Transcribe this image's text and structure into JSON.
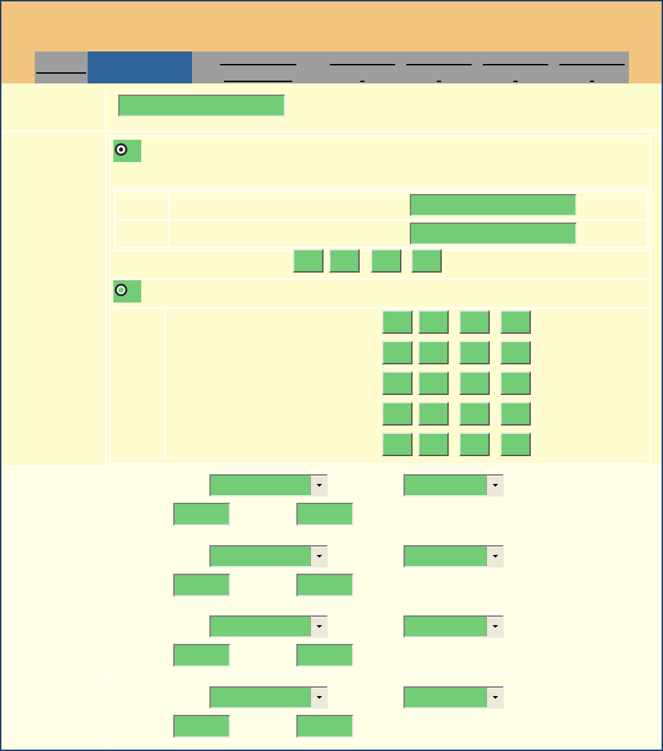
{
  "header": {
    "title": ""
  },
  "tabs": [
    {
      "id": "tab-1",
      "label": "",
      "active": false
    },
    {
      "id": "tab-2",
      "label": "",
      "active": true
    },
    {
      "id": "tab-3",
      "label": "",
      "active": false
    },
    {
      "id": "tab-4",
      "label": "",
      "active": false
    },
    {
      "id": "tab-5",
      "label": "",
      "active": false
    },
    {
      "id": "tab-6",
      "label": "",
      "active": false
    },
    {
      "id": "tab-7",
      "label": "",
      "active": false
    }
  ],
  "name_section": {
    "label": "",
    "name_value": ""
  },
  "mode_section": {
    "label": "",
    "option_a": {
      "label": "",
      "selected": true
    },
    "option_a_rows": [
      {
        "label": "",
        "desc": "",
        "value": ""
      },
      {
        "label": "",
        "desc": "",
        "value": ""
      }
    ],
    "option_a_buttons": [
      "",
      "",
      "",
      ""
    ],
    "option_b": {
      "label": "",
      "selected": false
    },
    "option_b_rows": [
      {
        "label": "",
        "desc": "",
        "values": [
          "",
          "",
          "",
          ""
        ]
      },
      {
        "label": "",
        "desc": "",
        "values": [
          "",
          "",
          "",
          ""
        ]
      },
      {
        "label": "",
        "desc": "",
        "values": [
          "",
          "",
          "",
          ""
        ]
      },
      {
        "label": "",
        "desc": "",
        "values": [
          "",
          "",
          "",
          ""
        ]
      },
      {
        "label": "",
        "desc": "",
        "values": [
          "",
          "",
          "",
          ""
        ]
      }
    ]
  },
  "select_groups": [
    {
      "select_a": "",
      "select_b": "",
      "field_a": "",
      "field_b": ""
    },
    {
      "select_a": "",
      "select_b": "",
      "field_a": "",
      "field_b": ""
    },
    {
      "select_a": "",
      "select_b": "",
      "field_a": "",
      "field_b": ""
    },
    {
      "select_a": "",
      "select_b": "",
      "field_a": "",
      "field_b": ""
    }
  ],
  "colors": {
    "frame_border": "#1f3f6e",
    "header_bg": "#f3c57f",
    "tab_bg": "#9e9e9e",
    "tab_active_bg": "#306398",
    "panel_bg": "#fffccf",
    "page_bg": "#fffee6",
    "input_bg": "#72cd76"
  }
}
